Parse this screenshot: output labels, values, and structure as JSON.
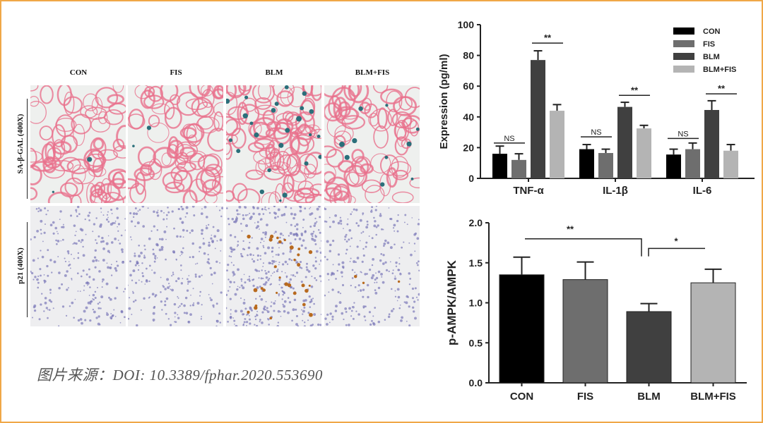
{
  "figure": {
    "columns": [
      "CON",
      "FIS",
      "BLM",
      "BLM+FIS"
    ],
    "rows": [
      "SA-β-GAL (400X)",
      "p21 (400X)"
    ],
    "caption": "图片来源：DOI: 10.3389/fphar.2020.553690"
  },
  "colors": {
    "CON": "#000000",
    "FIS": "#6e6e6e",
    "BLM": "#404040",
    "BLM+FIS": "#b4b4b4",
    "border": "#f0a848"
  },
  "chart_data": [
    {
      "type": "bar",
      "ylabel": "Expression (pg/ml)",
      "ylim": [
        0,
        100
      ],
      "yticks": [
        0,
        20,
        40,
        60,
        80,
        100
      ],
      "categories": [
        "TNF-α",
        "IL-1β",
        "IL-6"
      ],
      "legend": "top-right",
      "series": [
        {
          "name": "CON",
          "values": [
            16,
            19,
            15.5
          ],
          "errors": [
            5,
            3,
            3.5
          ]
        },
        {
          "name": "FIS",
          "values": [
            12,
            16.5,
            19
          ],
          "errors": [
            4,
            2.5,
            4
          ]
        },
        {
          "name": "BLM",
          "values": [
            77,
            46.5,
            44.5
          ],
          "errors": [
            6,
            3,
            6
          ]
        },
        {
          "name": "BLM+FIS",
          "values": [
            44,
            32.5,
            18
          ],
          "errors": [
            4,
            2,
            4
          ]
        }
      ],
      "annotations": [
        {
          "category": "TNF-α",
          "pair": [
            "CON",
            "FIS"
          ],
          "label": "NS",
          "y": 23
        },
        {
          "category": "TNF-α",
          "pair": [
            "BLM",
            "BLM+FIS"
          ],
          "label": "**",
          "y": 88
        },
        {
          "category": "IL-1β",
          "pair": [
            "CON",
            "FIS"
          ],
          "label": "NS",
          "y": 27
        },
        {
          "category": "IL-1β",
          "pair": [
            "BLM",
            "BLM+FIS"
          ],
          "label": "**",
          "y": 54
        },
        {
          "category": "IL-6",
          "pair": [
            "CON",
            "FIS"
          ],
          "label": "NS",
          "y": 26
        },
        {
          "category": "IL-6",
          "pair": [
            "BLM",
            "BLM+FIS"
          ],
          "label": "**",
          "y": 55
        }
      ]
    },
    {
      "type": "bar",
      "ylabel": "p-AMPK/AMPK",
      "ylim": [
        0,
        2.0
      ],
      "yticks": [
        "0.0",
        "0.5",
        "1.0",
        "1.5",
        "2.0"
      ],
      "categories": [
        "CON",
        "FIS",
        "BLM",
        "BLM+FIS"
      ],
      "values": [
        1.35,
        1.29,
        0.89,
        1.25
      ],
      "errors": [
        0.22,
        0.22,
        0.1,
        0.17
      ],
      "annotations": [
        {
          "pair": [
            "CON",
            "BLM"
          ],
          "label": "**",
          "y": 1.8
        },
        {
          "pair": [
            "BLM",
            "BLM+FIS"
          ],
          "label": "*",
          "y": 1.68
        }
      ]
    }
  ]
}
